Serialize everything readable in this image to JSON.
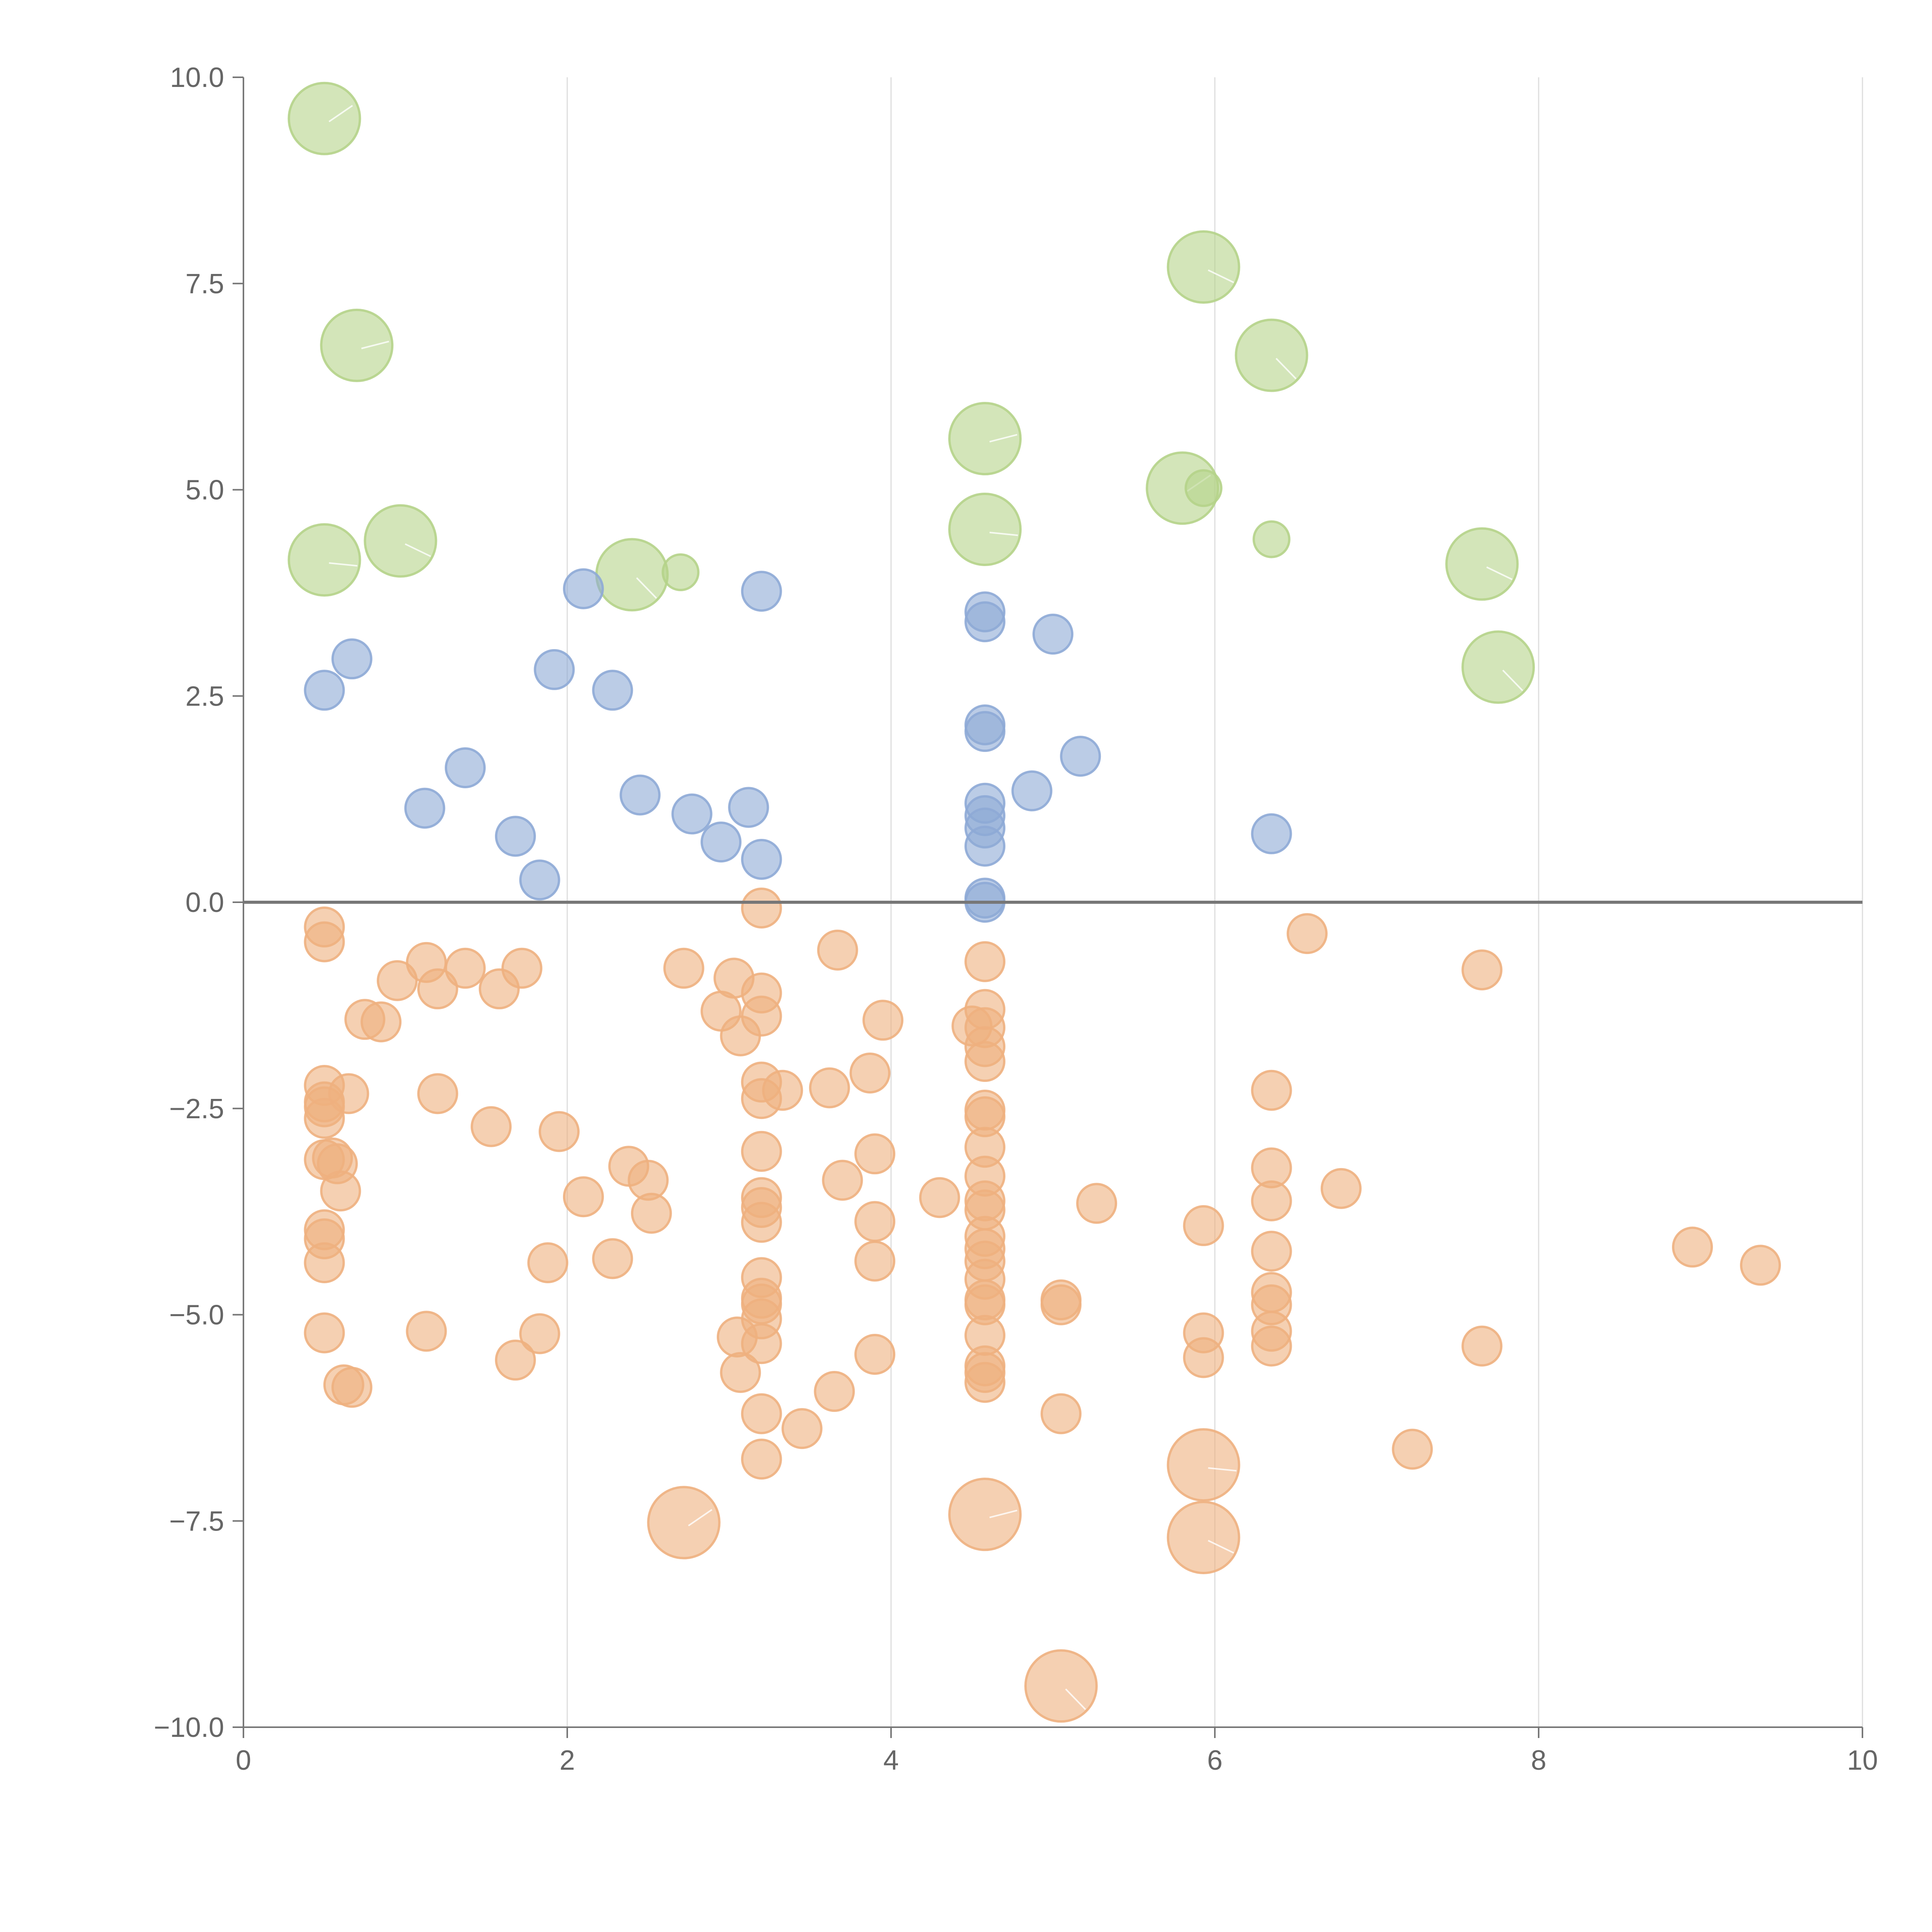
{
  "chart_data": {
    "type": "scatter",
    "title": "",
    "xlabel": "",
    "ylabel": "",
    "xlim": [
      0,
      10
    ],
    "ylim": [
      -10,
      10
    ],
    "xticks": [
      "0",
      "2",
      "4",
      "6",
      "8",
      "10"
    ],
    "yticks": [
      "10.0",
      "7.5",
      "5.0",
      "2.5",
      "0.0",
      "−2.5",
      "−5.0",
      "−7.5",
      "−10.0"
    ],
    "grid": "vertical lines at x ticks; horizontal reference line at y = 0",
    "legend": "none",
    "colors": {
      "large": "#b5d38a",
      "positive": "#8eaad6",
      "negative": "#eeb07f"
    },
    "series": [
      {
        "color_key": "large",
        "size": "large",
        "points": [
          [
            0.5,
            9.5
          ],
          [
            0.7,
            6.75
          ],
          [
            0.5,
            4.15
          ],
          [
            0.97,
            4.38
          ],
          [
            2.4,
            3.97
          ],
          [
            2.7,
            4.0
          ],
          [
            4.58,
            5.62
          ],
          [
            4.58,
            4.52
          ],
          [
            5.93,
            7.7
          ],
          [
            6.35,
            6.63
          ],
          [
            5.8,
            5.02
          ],
          [
            5.93,
            5.02
          ],
          [
            6.35,
            4.4
          ],
          [
            7.65,
            4.1
          ],
          [
            7.75,
            2.85
          ]
        ],
        "radii": [
          1.0,
          1.0,
          1.0,
          1.0,
          1.0,
          0.5,
          1.0,
          1.0,
          1.0,
          1.0,
          1.0,
          0.5,
          0.5,
          1.0,
          1.0
        ]
      },
      {
        "color_key": "positive",
        "size": "medium",
        "points": [
          [
            0.5,
            2.57
          ],
          [
            0.67,
            2.95
          ],
          [
            1.12,
            1.14
          ],
          [
            1.37,
            1.63
          ],
          [
            1.68,
            0.8
          ],
          [
            1.83,
            0.27
          ],
          [
            1.92,
            2.82
          ],
          [
            2.1,
            3.8
          ],
          [
            2.28,
            2.57
          ],
          [
            2.45,
            1.3
          ],
          [
            2.77,
            1.07
          ],
          [
            2.95,
            0.73
          ],
          [
            3.12,
            1.15
          ],
          [
            3.2,
            0.52
          ],
          [
            3.2,
            3.77
          ],
          [
            4.58,
            3.52
          ],
          [
            4.58,
            3.4
          ],
          [
            4.58,
            2.15
          ],
          [
            4.58,
            2.07
          ],
          [
            4.58,
            1.2
          ],
          [
            4.58,
            1.05
          ],
          [
            4.58,
            0.9
          ],
          [
            4.58,
            0.68
          ],
          [
            4.58,
            0.05
          ],
          [
            4.58,
            0.0
          ],
          [
            4.87,
            1.35
          ],
          [
            5.0,
            3.25
          ],
          [
            5.17,
            1.77
          ],
          [
            6.35,
            0.83
          ]
        ]
      },
      {
        "color_key": "negative",
        "size": "medium",
        "points": [
          [
            0.5,
            -0.3
          ],
          [
            0.5,
            -0.48
          ],
          [
            0.5,
            -2.22
          ],
          [
            0.5,
            -2.42
          ],
          [
            0.5,
            -2.48
          ],
          [
            0.5,
            -2.62
          ],
          [
            0.5,
            -3.12
          ],
          [
            0.55,
            -3.1
          ],
          [
            0.58,
            -3.17
          ],
          [
            0.6,
            -3.5
          ],
          [
            0.5,
            -3.97
          ],
          [
            0.5,
            -4.08
          ],
          [
            0.5,
            -4.37
          ],
          [
            0.5,
            -5.22
          ],
          [
            0.65,
            -2.32
          ],
          [
            0.62,
            -5.85
          ],
          [
            0.67,
            -5.88
          ],
          [
            0.75,
            -1.42
          ],
          [
            0.85,
            -1.45
          ],
          [
            0.95,
            -0.95
          ],
          [
            1.13,
            -0.73
          ],
          [
            1.2,
            -1.05
          ],
          [
            1.2,
            -2.32
          ],
          [
            1.13,
            -5.2
          ],
          [
            1.37,
            -0.8
          ],
          [
            1.58,
            -1.05
          ],
          [
            1.53,
            -2.72
          ],
          [
            1.72,
            -0.8
          ],
          [
            1.68,
            -5.55
          ],
          [
            1.83,
            -5.23
          ],
          [
            1.88,
            -4.37
          ],
          [
            1.95,
            -2.78
          ],
          [
            2.1,
            -3.57
          ],
          [
            2.28,
            -4.32
          ],
          [
            2.38,
            -3.2
          ],
          [
            2.5,
            -3.37
          ],
          [
            2.52,
            -3.77
          ],
          [
            2.72,
            -0.8
          ],
          [
            2.95,
            -1.32
          ],
          [
            3.03,
            -0.92
          ],
          [
            3.07,
            -1.62
          ],
          [
            3.05,
            -5.27
          ],
          [
            3.07,
            -5.7
          ],
          [
            3.2,
            -0.07
          ],
          [
            3.2,
            -1.1
          ],
          [
            3.2,
            -1.38
          ],
          [
            3.2,
            -2.18
          ],
          [
            3.2,
            -2.38
          ],
          [
            3.2,
            -3.02
          ],
          [
            3.2,
            -3.58
          ],
          [
            3.2,
            -3.7
          ],
          [
            3.2,
            -3.88
          ],
          [
            3.2,
            -4.55
          ],
          [
            3.2,
            -4.8
          ],
          [
            3.2,
            -4.87
          ],
          [
            3.2,
            -5.05
          ],
          [
            3.2,
            -5.35
          ],
          [
            3.2,
            -6.2
          ],
          [
            3.2,
            -6.75
          ],
          [
            3.33,
            -2.28
          ],
          [
            3.45,
            -6.38
          ],
          [
            3.62,
            -2.25
          ],
          [
            3.67,
            -0.58
          ],
          [
            3.65,
            -5.93
          ],
          [
            3.7,
            -3.37
          ],
          [
            3.87,
            -2.07
          ],
          [
            3.9,
            -3.05
          ],
          [
            3.9,
            -3.87
          ],
          [
            3.9,
            -4.35
          ],
          [
            3.9,
            -5.48
          ],
          [
            3.95,
            -1.43
          ],
          [
            4.3,
            -3.58
          ],
          [
            4.5,
            -1.5
          ],
          [
            4.58,
            -0.72
          ],
          [
            4.58,
            -1.3
          ],
          [
            4.58,
            -1.52
          ],
          [
            4.58,
            -1.75
          ],
          [
            4.58,
            -1.93
          ],
          [
            4.58,
            -2.52
          ],
          [
            4.58,
            -2.6
          ],
          [
            4.58,
            -2.97
          ],
          [
            4.58,
            -3.32
          ],
          [
            4.58,
            -3.62
          ],
          [
            4.58,
            -3.73
          ],
          [
            4.58,
            -4.05
          ],
          [
            4.58,
            -4.2
          ],
          [
            4.58,
            -4.35
          ],
          [
            4.58,
            -4.57
          ],
          [
            4.58,
            -4.82
          ],
          [
            4.58,
            -4.88
          ],
          [
            4.58,
            -5.25
          ],
          [
            4.58,
            -5.62
          ],
          [
            4.58,
            -5.7
          ],
          [
            4.58,
            -5.82
          ],
          [
            5.05,
            -4.82
          ],
          [
            5.05,
            -4.88
          ],
          [
            5.05,
            -6.2
          ],
          [
            5.27,
            -3.65
          ],
          [
            5.93,
            -3.92
          ],
          [
            5.93,
            -5.22
          ],
          [
            5.93,
            -5.52
          ],
          [
            6.35,
            -2.28
          ],
          [
            6.35,
            -3.22
          ],
          [
            6.35,
            -3.62
          ],
          [
            6.35,
            -4.23
          ],
          [
            6.35,
            -4.73
          ],
          [
            6.35,
            -4.88
          ],
          [
            6.35,
            -5.2
          ],
          [
            6.35,
            -5.38
          ],
          [
            6.57,
            -0.38
          ],
          [
            6.78,
            -3.47
          ],
          [
            7.22,
            -6.63
          ],
          [
            7.65,
            -0.82
          ],
          [
            7.65,
            -5.38
          ],
          [
            8.95,
            -4.18
          ],
          [
            9.37,
            -4.4
          ]
        ]
      },
      {
        "color_key": "negative",
        "size": "large",
        "points": [
          [
            2.72,
            -7.52
          ],
          [
            4.58,
            -7.42
          ],
          [
            5.93,
            -6.82
          ],
          [
            5.93,
            -7.7
          ],
          [
            5.05,
            -9.5
          ]
        ]
      }
    ]
  }
}
